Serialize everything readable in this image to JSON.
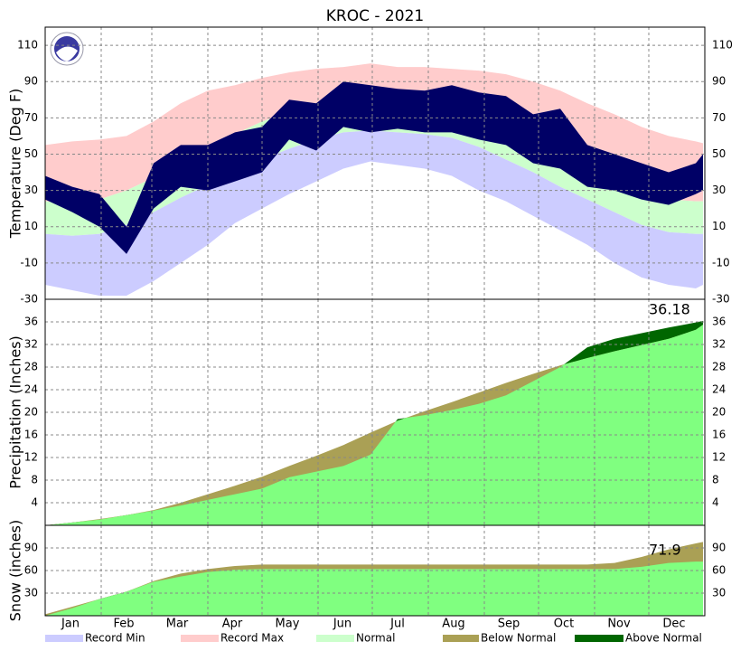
{
  "title": "KROC - 2021",
  "months": [
    "Jan",
    "Feb",
    "Mar",
    "Apr",
    "May",
    "Jun",
    "Jul",
    "Aug",
    "Sep",
    "Oct",
    "Nov",
    "Dec"
  ],
  "legend": [
    {
      "name": "Record Min",
      "color": "#ccccff"
    },
    {
      "name": "Record Max",
      "color": "#ffcccc"
    },
    {
      "name": "Normal",
      "color": "#ccffcc"
    },
    {
      "name": "Below Normal",
      "color": "#aaa055"
    },
    {
      "name": "Above Normal",
      "color": "#006600"
    }
  ],
  "chart_data": [
    {
      "type": "band",
      "ylabel": "Temperature (Deg F)",
      "x": [
        0,
        15,
        30,
        45,
        60,
        75,
        90,
        105,
        120,
        135,
        150,
        165,
        180,
        195,
        210,
        225,
        240,
        255,
        270,
        285,
        300,
        315,
        330,
        345,
        360,
        364
      ],
      "record_max": [
        55,
        57,
        58,
        60,
        68,
        78,
        85,
        88,
        92,
        95,
        97,
        98,
        100,
        98,
        98,
        97,
        96,
        94,
        90,
        85,
        78,
        72,
        65,
        60,
        57,
        56
      ],
      "normal_high": [
        24,
        23,
        25,
        30,
        37,
        45,
        53,
        61,
        68,
        73,
        78,
        82,
        83,
        83,
        81,
        80,
        76,
        70,
        63,
        55,
        46,
        37,
        29,
        25,
        24,
        24
      ],
      "normal_low": [
        6,
        5,
        6,
        11,
        18,
        26,
        33,
        40,
        47,
        53,
        58,
        62,
        63,
        62,
        61,
        59,
        54,
        47,
        40,
        32,
        25,
        18,
        11,
        7,
        6,
        6
      ],
      "record_min": [
        -22,
        -25,
        -28,
        -28,
        -20,
        -10,
        0,
        12,
        20,
        28,
        35,
        42,
        46,
        44,
        42,
        38,
        30,
        24,
        16,
        8,
        0,
        -10,
        -18,
        -22,
        -24,
        -22
      ],
      "observed_high": [
        38,
        32,
        28,
        10,
        45,
        55,
        55,
        62,
        65,
        80,
        78,
        90,
        88,
        86,
        85,
        88,
        84,
        82,
        72,
        75,
        55,
        50,
        45,
        40,
        45,
        50
      ],
      "observed_low": [
        25,
        18,
        10,
        -5,
        20,
        32,
        30,
        35,
        40,
        58,
        52,
        65,
        62,
        64,
        62,
        62,
        58,
        55,
        45,
        42,
        32,
        30,
        25,
        22,
        28,
        30
      ],
      "observed_color": "#000066",
      "xlim": [
        0,
        365
      ],
      "ylim": [
        -30,
        120
      ],
      "yticks": [
        -30,
        -10,
        10,
        30,
        50,
        70,
        90,
        110
      ]
    },
    {
      "type": "cumulative",
      "ylabel": "Precipitation (Inches)",
      "x": [
        0,
        15,
        30,
        45,
        60,
        75,
        90,
        105,
        120,
        135,
        150,
        165,
        180,
        195,
        210,
        225,
        240,
        255,
        270,
        285,
        300,
        315,
        330,
        345,
        360,
        364
      ],
      "observed": [
        0,
        0.5,
        1.0,
        1.8,
        2.6,
        3.5,
        4.5,
        5.5,
        6.5,
        8.5,
        9.5,
        10.5,
        12.5,
        18.8,
        19.5,
        20.4,
        21.5,
        23,
        25.5,
        28,
        31.5,
        33,
        34,
        35,
        35.9,
        36.18
      ],
      "normal": [
        0,
        0.5,
        1.1,
        1.8,
        2.7,
        4,
        5.5,
        7,
        8.6,
        10.5,
        12.3,
        14.2,
        16.4,
        18.5,
        20.2,
        21.8,
        23.5,
        25.2,
        26.8,
        28.3,
        29.6,
        30.8,
        31.9,
        33,
        34.6,
        35.5
      ],
      "fill_color": "#80ff80",
      "total": 36.18,
      "xlim": [
        0,
        365
      ],
      "ylim": [
        0,
        40
      ],
      "yticks": [
        4,
        8,
        12,
        16,
        20,
        24,
        28,
        32,
        36
      ]
    },
    {
      "type": "cumulative",
      "ylabel": "Snow (inches)",
      "x": [
        0,
        15,
        30,
        45,
        60,
        75,
        90,
        105,
        120,
        135,
        150,
        165,
        180,
        195,
        210,
        225,
        240,
        255,
        270,
        285,
        300,
        315,
        330,
        345,
        360,
        364
      ],
      "observed": [
        0,
        10,
        22,
        32,
        45,
        52,
        58,
        61,
        62,
        62,
        62,
        62,
        62,
        62,
        62,
        62,
        62,
        62,
        62,
        62,
        62,
        62,
        65,
        70,
        71.9,
        71.9
      ],
      "normal": [
        2,
        12,
        22,
        32,
        46,
        56,
        62,
        66,
        68,
        68,
        68,
        68,
        68,
        68,
        68,
        68,
        68,
        68,
        68,
        68,
        68,
        70,
        78,
        88,
        96,
        98
      ],
      "fill_color": "#80ff80",
      "total": 71.9,
      "xlim": [
        0,
        365
      ],
      "ylim": [
        0,
        120
      ],
      "yticks": [
        30,
        60,
        90
      ]
    }
  ]
}
